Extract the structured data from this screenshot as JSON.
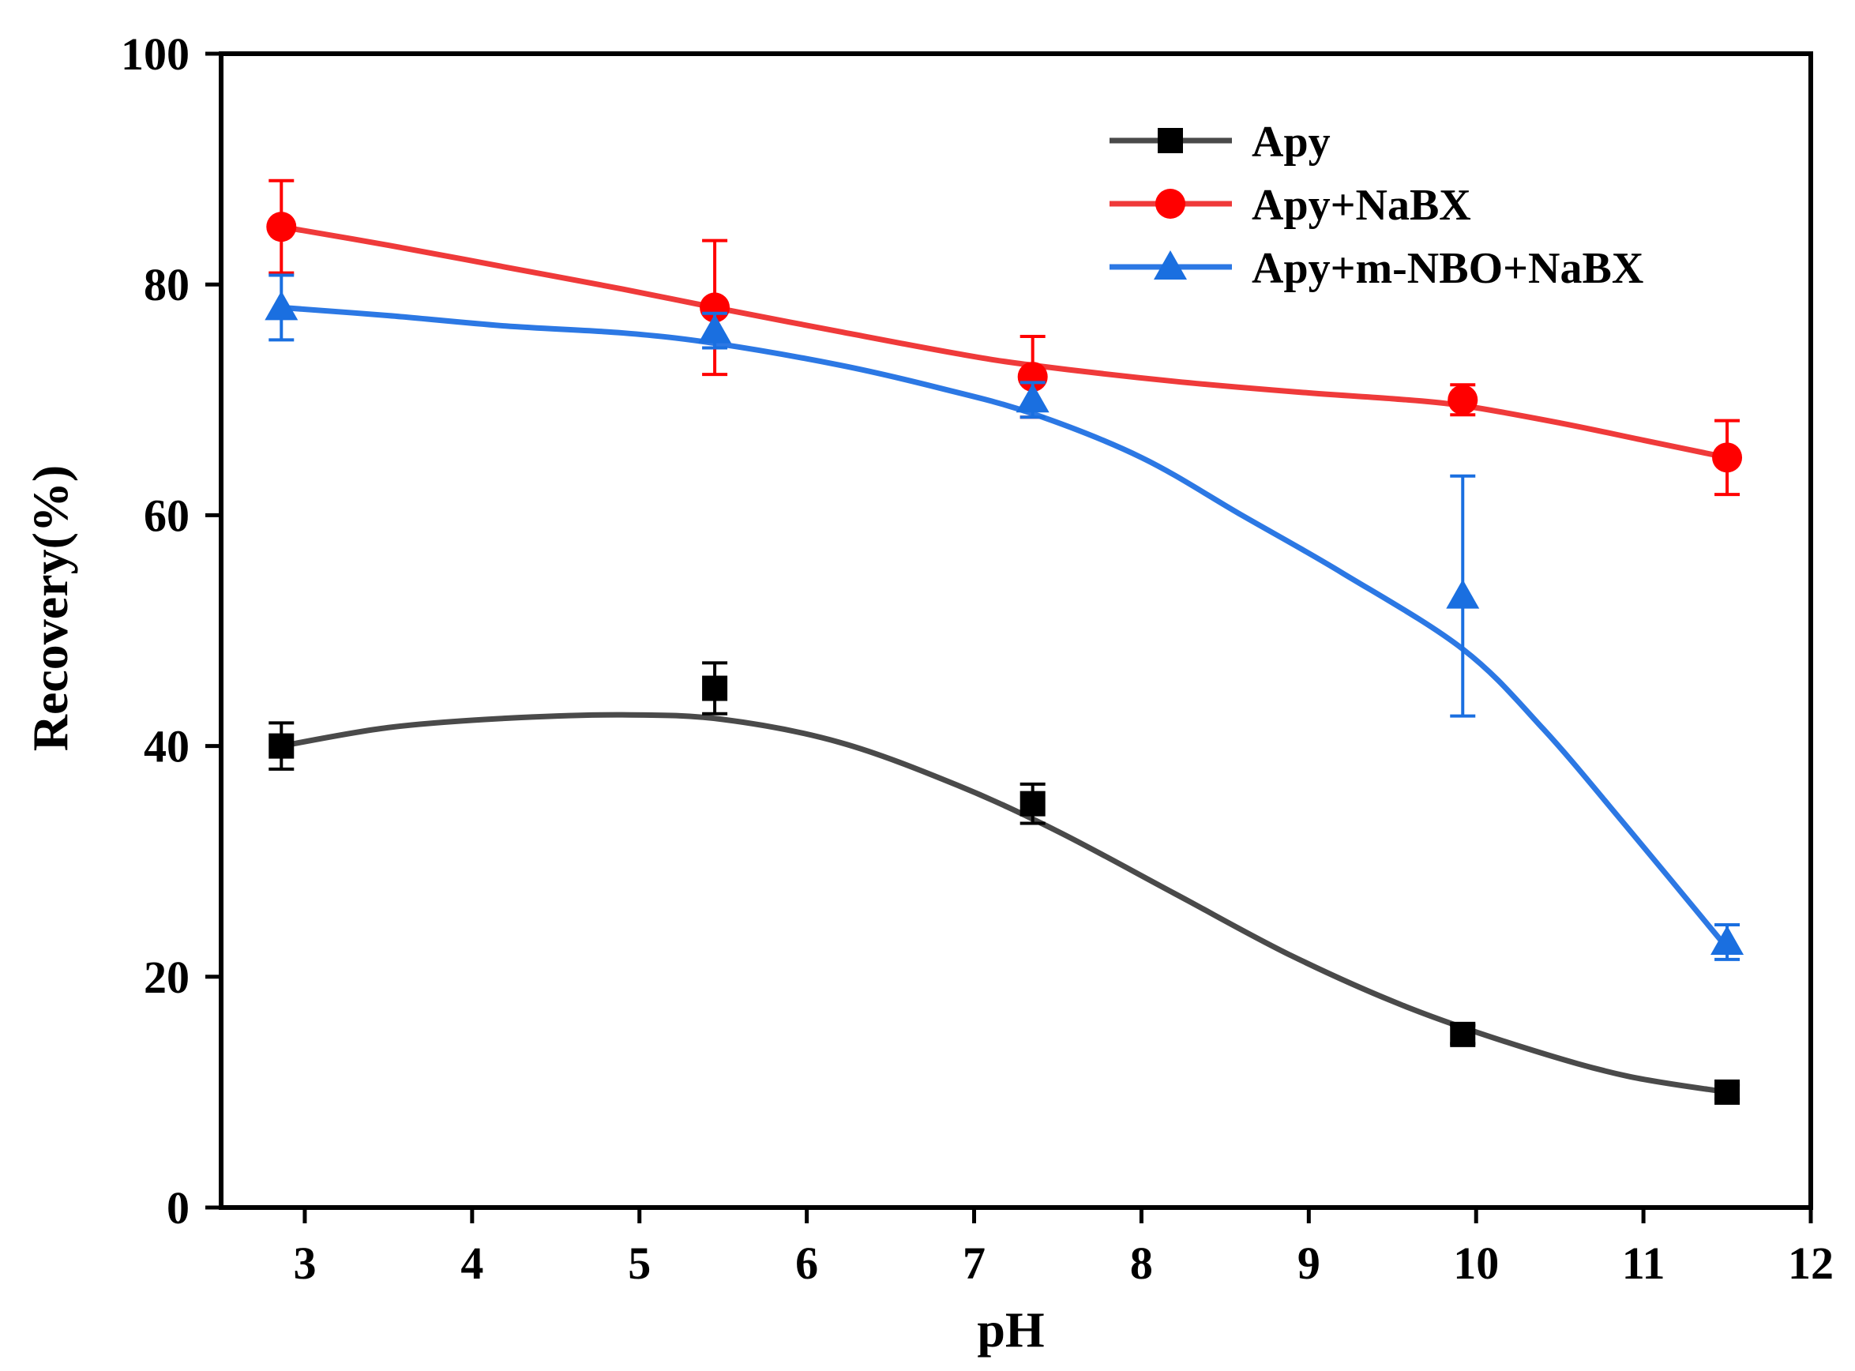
{
  "chart_data": {
    "type": "line",
    "title": "",
    "xlabel": "pH",
    "ylabel": "Recovery(%)",
    "xlim": [
      2.5,
      12
    ],
    "ylim": [
      0,
      100
    ],
    "xticks": [
      3,
      4,
      5,
      6,
      7,
      8,
      9,
      10,
      11,
      12
    ],
    "yticks": [
      0,
      20,
      40,
      60,
      80,
      100
    ],
    "grid": false,
    "legend_position": "top-right",
    "series": [
      {
        "name": "Apy",
        "color": "#4a4a4a",
        "marker_color": "#000000",
        "marker": "square",
        "x": [
          2.86,
          5.45,
          7.35,
          9.92,
          11.5
        ],
        "y": [
          40,
          45,
          35,
          15,
          10
        ],
        "err": [
          2,
          2.2,
          1.7,
          0.8,
          0.6
        ],
        "curve_x": [
          2.86,
          3.5,
          4.2,
          4.9,
          5.5,
          6.2,
          6.9,
          7.5,
          8.2,
          8.9,
          9.6,
          10.3,
          10.9,
          11.5
        ],
        "curve_y": [
          40,
          41.6,
          42.4,
          42.7,
          42.3,
          40.3,
          36.6,
          32.6,
          27.2,
          21.8,
          17.3,
          13.8,
          11.4,
          10
        ]
      },
      {
        "name": "Apy+NaBX",
        "color": "#ef3a3a",
        "marker_color": "#ff0000",
        "marker": "circle",
        "x": [
          2.86,
          5.45,
          7.35,
          9.92,
          11.5
        ],
        "y": [
          85,
          78,
          72,
          70,
          65
        ],
        "err": [
          4,
          5.8,
          3.5,
          1.3,
          3.2
        ],
        "curve_x": [
          2.86,
          3.5,
          4.2,
          4.9,
          5.45,
          6.2,
          6.9,
          7.35,
          8.2,
          9.0,
          9.5,
          9.92,
          10.5,
          11.0,
          11.5
        ],
        "curve_y": [
          85,
          83.4,
          81.5,
          79.6,
          78,
          75.9,
          74,
          73,
          71.6,
          70.6,
          70.1,
          69.5,
          68,
          66.5,
          65
        ]
      },
      {
        "name": "Apy+m-NBO+NaBX",
        "color": "#2c78e4",
        "marker_color": "#1a6fe0",
        "marker": "triangle",
        "x": [
          2.86,
          5.45,
          7.35,
          9.92,
          11.5
        ],
        "y": [
          78,
          76,
          70,
          53,
          23
        ],
        "err": [
          2.8,
          1.5,
          1.5,
          10.4,
          1.5
        ],
        "curve_x": [
          2.86,
          3.5,
          4.2,
          4.9,
          5.45,
          6.2,
          6.8,
          7.35,
          8.0,
          8.6,
          9.2,
          9.92,
          10.4,
          10.9,
          11.5
        ],
        "curve_y": [
          78,
          77.3,
          76.4,
          75.8,
          74.9,
          73,
          71,
          68.8,
          65,
          60,
          55,
          48.4,
          41.5,
          33,
          22.5
        ]
      }
    ]
  }
}
